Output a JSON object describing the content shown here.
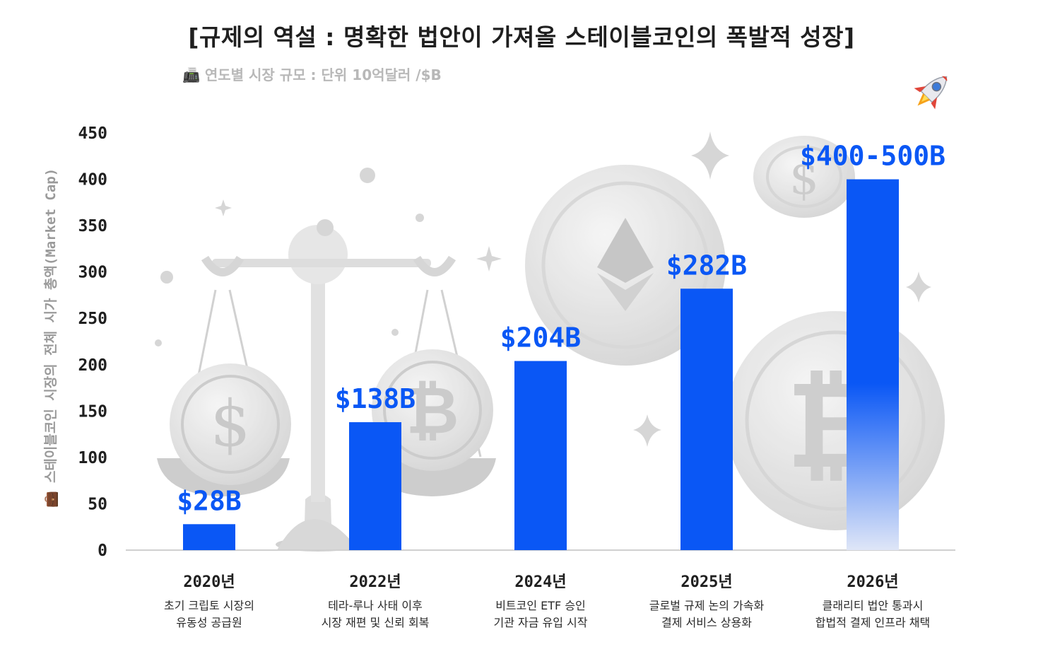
{
  "header": {
    "title": "[규제의 역설 : 명확한 법안이 가져올 스테이블코인의 폭발적 성장]",
    "subtitle": "📠 연도별 시장 규모 : 단위 10억달러 /$B"
  },
  "colors": {
    "bar": "#0a57f5",
    "label": "#0a57f5",
    "axis_text": "#1f1f1f",
    "ylabel_text": "#9a9a9a",
    "decor": "#d9d9d9"
  },
  "icons": [
    "rocket-icon",
    "scale-icon",
    "dollar-coin-icon",
    "bitcoin-coin-icon",
    "ethereum-coin-icon",
    "sparkle-icon"
  ],
  "chart_data": {
    "type": "bar",
    "categories": [
      "2020년",
      "2022년",
      "2024년",
      "2025년",
      "2026년"
    ],
    "descriptions": [
      [
        "초기 크립토 시장의",
        "유동성 공급원"
      ],
      [
        "테라-루나 사태 이후",
        "시장 재편 및 신뢰 회복"
      ],
      [
        "비트코인 ETF 승인",
        "기관 자금 유입 시작"
      ],
      [
        "글로벌 규제 논의 가속화",
        "결제 서비스 상용화"
      ],
      [
        "클래리티 법안 통과시",
        "합법적 결제 인프라 채택"
      ]
    ],
    "values": [
      28,
      138,
      204,
      282,
      400
    ],
    "data_labels": [
      "$28B",
      "$138B",
      "$204B",
      "$282B",
      "$400-500B"
    ],
    "ylabel": "💼 스테이블코인 시장의 전체 시가 총액(Market Cap)",
    "ylim": [
      0,
      450
    ],
    "yticks": [
      0,
      50,
      100,
      150,
      200,
      250,
      300,
      350,
      400,
      450
    ],
    "grid": false,
    "faded_last_bar": true
  }
}
